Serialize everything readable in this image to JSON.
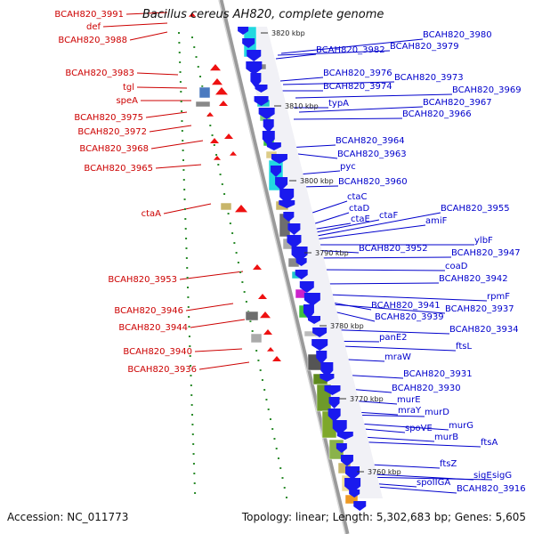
{
  "header": {
    "organism": "Bacillus cereus AH820, complete genome"
  },
  "footer": {
    "accession": "Accession: NC_011773",
    "summary": "Topology: linear; Length: 5,302,683 bp; Genes: 5,605"
  },
  "colors": {
    "left_labels": "#cc0000",
    "right_labels": "#0000cc",
    "forward_gene": "#1a1aee",
    "reverse_gene": "#ee1111",
    "backbone": "#9a9a9a"
  },
  "scale_marks": [
    "3820 kbp",
    "3810 kbp",
    "3800 kbp",
    "3790 kbp",
    "3780 kbp",
    "3770 kbp",
    "3760 kbp"
  ],
  "left_labels": [
    "BCAH820_3991",
    "def",
    "BCAH820_3988",
    "BCAH820_3983",
    "tgl",
    "speA",
    "BCAH820_3975",
    "BCAH820_3972",
    "BCAH820_3968",
    "BCAH820_3965",
    "ctaA",
    "BCAH820_3953",
    "BCAH820_3946",
    "BCAH820_3944",
    "BCAH820_3940",
    "BCAH820_3936"
  ],
  "right_labels": [
    "BCAH820_3980",
    "BCAH820_3982",
    "BCAH820_3979",
    "BCAH820_3976",
    "BCAH820_3973",
    "BCAH820_3974",
    "BCAH820_3969",
    "typA",
    "BCAH820_3967",
    "BCAH820_3966",
    "BCAH820_3964",
    "BCAH820_3963",
    "pyc",
    "BCAH820_3960",
    "ctaC",
    "ctaD",
    "ctaE",
    "ctaF",
    "BCAH820_3955",
    "amiF",
    "ylbF",
    "BCAH820_3952",
    "BCAH820_3947",
    "coaD",
    "BCAH820_3942",
    "rpmF",
    "BCAH820_3941",
    "BCAH820_3937",
    "BCAH820_3939",
    "BCAH820_3934",
    "panE2",
    "ftsL",
    "mraW",
    "BCAH820_3931",
    "BCAH820_3930",
    "murE",
    "mraY",
    "murD",
    "murG",
    "spoVE",
    "murB",
    "ftsA",
    "ftsZ",
    "sigE",
    "sigG",
    "spoIIGA",
    "BCAH820_3916"
  ]
}
